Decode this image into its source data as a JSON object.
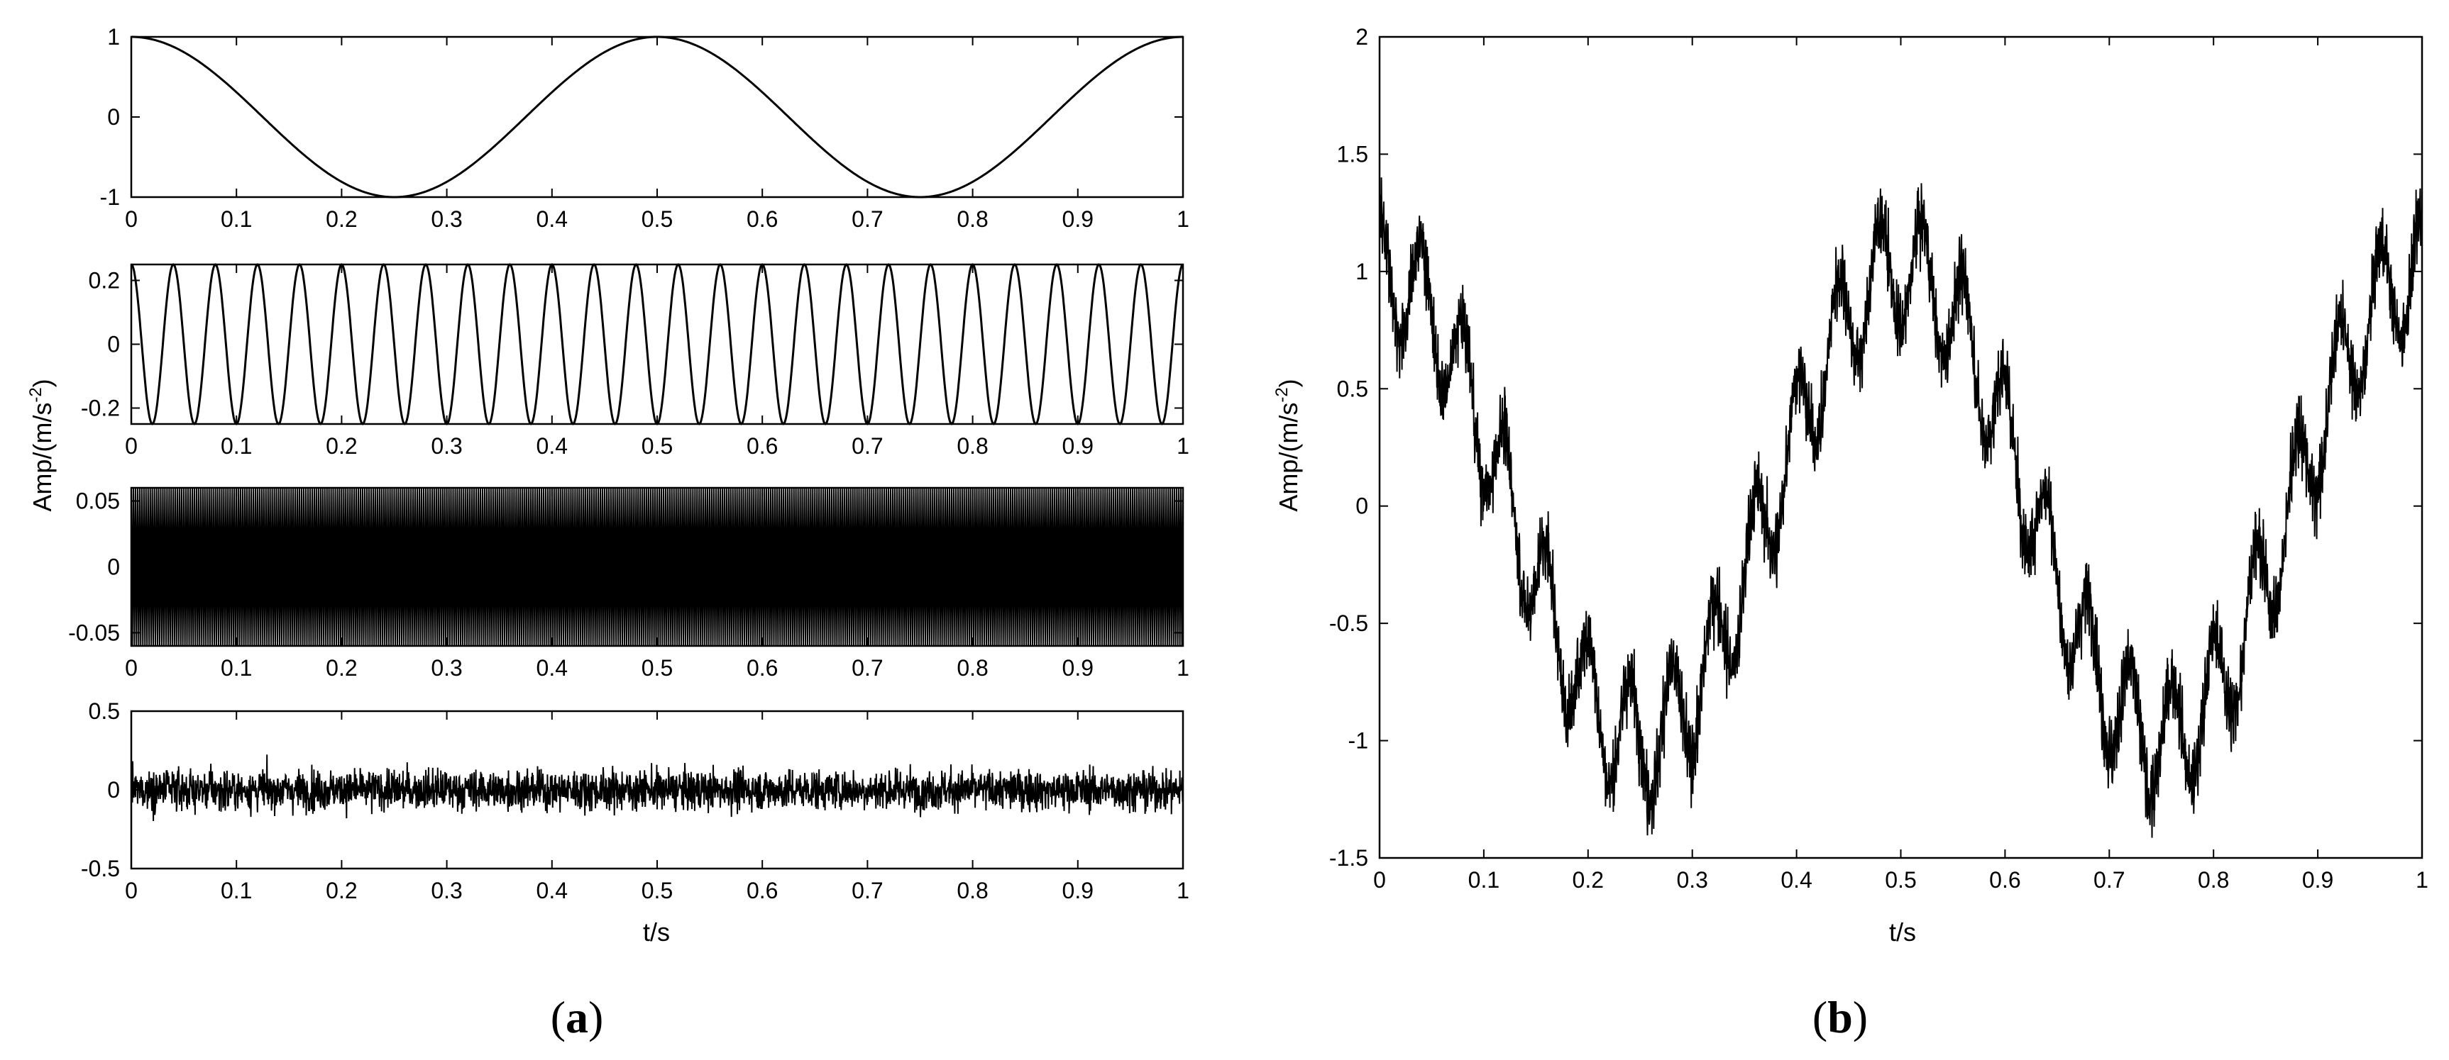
{
  "chart_data": [
    {
      "panel": "a",
      "type": "line",
      "subplot": 1,
      "function": "cos(2*pi*2*t)",
      "amplitude": 1,
      "frequency_hz": 2,
      "xlim": [
        0,
        1
      ],
      "ylim": [
        -1,
        1
      ],
      "xticks": [
        0,
        0.1,
        0.2,
        0.3,
        0.4,
        0.5,
        0.6,
        0.7,
        0.8,
        0.9,
        1
      ],
      "xtick_labels": [
        "0",
        "0.1",
        "0.2",
        "0.3",
        "0.4",
        "0.5",
        "0.6",
        "0.7",
        "0.8",
        "0.9",
        "1"
      ],
      "yticks": [
        -1,
        0,
        1
      ],
      "ytick_labels": [
        "-1",
        "0",
        "1"
      ],
      "xlabel": "",
      "ylabel": "",
      "color": "#000000"
    },
    {
      "panel": "a",
      "type": "line",
      "subplot": 2,
      "function": "0.25*cos(2*pi*25*t)",
      "amplitude": 0.25,
      "frequency_hz": 25,
      "xlim": [
        0,
        1
      ],
      "ylim": [
        -0.25,
        0.25
      ],
      "xticks": [
        0,
        0.1,
        0.2,
        0.3,
        0.4,
        0.5,
        0.6,
        0.7,
        0.8,
        0.9,
        1
      ],
      "xtick_labels": [
        "0",
        "0.1",
        "0.2",
        "0.3",
        "0.4",
        "0.5",
        "0.6",
        "0.7",
        "0.8",
        "0.9",
        "1"
      ],
      "yticks": [
        -0.2,
        0,
        0.2
      ],
      "ytick_labels": [
        "-0.2",
        "0",
        "0.2"
      ],
      "xlabel": "",
      "ylabel": "",
      "color": "#000000"
    },
    {
      "panel": "a",
      "type": "line",
      "subplot": 3,
      "function": "0.06*cos(2*pi*f*t), dense high-frequency component",
      "amplitude": 0.06,
      "frequency_hz": 500,
      "xlim": [
        0,
        1
      ],
      "ylim": [
        -0.06,
        0.06
      ],
      "xticks": [
        0,
        0.1,
        0.2,
        0.3,
        0.4,
        0.5,
        0.6,
        0.7,
        0.8,
        0.9,
        1
      ],
      "xtick_labels": [
        "0",
        "0.1",
        "0.2",
        "0.3",
        "0.4",
        "0.5",
        "0.6",
        "0.7",
        "0.8",
        "0.9",
        "1"
      ],
      "yticks": [
        -0.05,
        0,
        0.05
      ],
      "ytick_labels": [
        "-0.05",
        "0",
        "0.05"
      ],
      "xlabel": "",
      "ylabel": "",
      "color": "#000000"
    },
    {
      "panel": "a",
      "type": "line",
      "subplot": 4,
      "function": "random noise",
      "noise_level": 0.1,
      "xlim": [
        0,
        1
      ],
      "ylim": [
        -0.5,
        0.5
      ],
      "xticks": [
        0,
        0.1,
        0.2,
        0.3,
        0.4,
        0.5,
        0.6,
        0.7,
        0.8,
        0.9,
        1
      ],
      "xtick_labels": [
        "0",
        "0.1",
        "0.2",
        "0.3",
        "0.4",
        "0.5",
        "0.6",
        "0.7",
        "0.8",
        "0.9",
        "1"
      ],
      "yticks": [
        -0.5,
        0,
        0.5
      ],
      "ytick_labels": [
        "-0.5",
        "0",
        "0.5"
      ],
      "xlabel": "t/s",
      "ylabel": "",
      "color": "#000000"
    },
    {
      "panel": "b",
      "type": "line",
      "subplot": 1,
      "function": "sum of panel (a) components",
      "xlim": [
        0,
        1
      ],
      "ylim": [
        -1.5,
        2
      ],
      "xticks": [
        0,
        0.1,
        0.2,
        0.3,
        0.4,
        0.5,
        0.6,
        0.7,
        0.8,
        0.9,
        1
      ],
      "xtick_labels": [
        "0",
        "0.1",
        "0.2",
        "0.3",
        "0.4",
        "0.5",
        "0.6",
        "0.7",
        "0.8",
        "0.9",
        "1"
      ],
      "yticks": [
        -1.5,
        -1,
        -0.5,
        0,
        0.5,
        1,
        1.5,
        2
      ],
      "ytick_labels": [
        "-1.5",
        "-1",
        "-0.5",
        "0",
        "0.5",
        "1",
        "1.5",
        "2"
      ],
      "xlabel": "t/s",
      "ylabel": "Amp/(m/s-2)",
      "color": "#000000"
    }
  ],
  "labels": {
    "a_ylabel_main": "Amp/(m/s",
    "a_ylabel_sup": "-2",
    "a_ylabel_close": ")",
    "b_ylabel_main": "Amp/(m/s",
    "b_ylabel_sup": "-2",
    "b_ylabel_close": ")",
    "a_xlabel": "t/s",
    "b_xlabel": "t/s",
    "panel_a_open": "(",
    "panel_a_letter": "a",
    "panel_a_close": ")",
    "panel_b_open": "(",
    "panel_b_letter": "b",
    "panel_b_close": ")"
  }
}
